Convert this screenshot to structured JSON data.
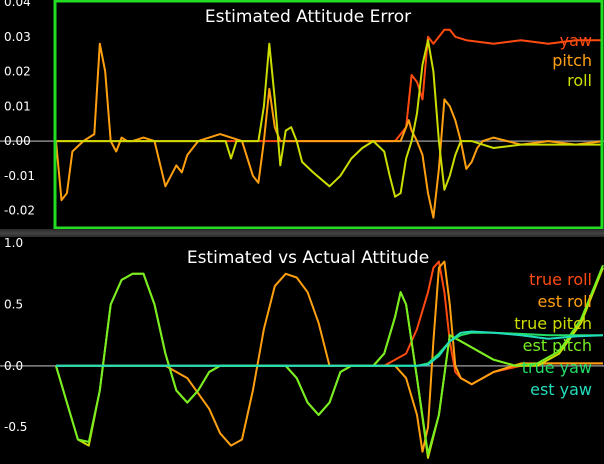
{
  "chart_data": [
    {
      "type": "line",
      "title": "Estimated Attitude Error",
      "xlabel": "",
      "ylabel": "",
      "ylim": [
        -0.025,
        0.04
      ],
      "yticks": [
        "0.04",
        "0.03",
        "0.02",
        "0.01",
        "0.00",
        "-0.01",
        "-0.02"
      ],
      "ytick_values": [
        0.04,
        0.03,
        0.02,
        0.01,
        0.0,
        -0.01,
        -0.02
      ],
      "xlim": [
        0,
        1
      ],
      "grid": false,
      "legend_position": "top-right",
      "frame_color": "#22dd22",
      "series": [
        {
          "name": "yaw",
          "color": "#ff4a10",
          "x": [
            0,
            0.2,
            0.4,
            0.6,
            0.62,
            0.64,
            0.65,
            0.66,
            0.67,
            0.68,
            0.69,
            0.7,
            0.71,
            0.72,
            0.73,
            0.75,
            0.8,
            0.85,
            0.9,
            0.95,
            1.0
          ],
          "y": [
            0.0,
            0.0,
            0.0,
            0.0,
            0.0,
            0.004,
            0.019,
            0.017,
            0.012,
            0.03,
            0.028,
            0.03,
            0.032,
            0.032,
            0.03,
            0.029,
            0.028,
            0.029,
            0.028,
            0.029,
            0.029
          ]
        },
        {
          "name": "pitch",
          "color": "#ffa010",
          "x": [
            0,
            0.01,
            0.02,
            0.03,
            0.05,
            0.07,
            0.08,
            0.09,
            0.1,
            0.11,
            0.12,
            0.13,
            0.14,
            0.16,
            0.18,
            0.2,
            0.21,
            0.22,
            0.23,
            0.24,
            0.26,
            0.28,
            0.3,
            0.32,
            0.34,
            0.36,
            0.37,
            0.38,
            0.39,
            0.4,
            0.41,
            0.42,
            0.44,
            0.46,
            0.48,
            0.5,
            0.52,
            0.54,
            0.56,
            0.58,
            0.6,
            0.62,
            0.63,
            0.64,
            0.645,
            0.65,
            0.66,
            0.67,
            0.68,
            0.69,
            0.7,
            0.71,
            0.72,
            0.73,
            0.74,
            0.75,
            0.76,
            0.77,
            0.78,
            0.8,
            0.85,
            0.9,
            0.95,
            1.0
          ],
          "y": [
            0.0,
            -0.017,
            -0.015,
            -0.003,
            0.0,
            0.002,
            0.028,
            0.02,
            0.0,
            -0.003,
            0.001,
            0.0,
            0.0,
            0.001,
            0.0,
            -0.013,
            -0.01,
            -0.007,
            -0.009,
            -0.004,
            0.0,
            0.001,
            0.002,
            0.001,
            0.0,
            -0.01,
            -0.012,
            0.0,
            0.015,
            0.004,
            0.0,
            0.0,
            0.0,
            0.0,
            0.0,
            0.0,
            0.0,
            0.0,
            0.0,
            0.0,
            0.0,
            0.0,
            0.0,
            0.004,
            0.006,
            0.003,
            0.0,
            -0.004,
            -0.015,
            -0.022,
            -0.008,
            0.012,
            0.01,
            0.006,
            0.0,
            -0.008,
            -0.006,
            -0.002,
            0.0,
            0.001,
            -0.001,
            0.0,
            -0.001,
            0.0
          ]
        },
        {
          "name": "roll",
          "color": "#ccdd00",
          "x": [
            0,
            0.05,
            0.1,
            0.15,
            0.2,
            0.25,
            0.3,
            0.31,
            0.32,
            0.33,
            0.34,
            0.35,
            0.36,
            0.37,
            0.38,
            0.39,
            0.4,
            0.41,
            0.42,
            0.43,
            0.44,
            0.45,
            0.47,
            0.5,
            0.52,
            0.54,
            0.56,
            0.58,
            0.6,
            0.61,
            0.62,
            0.63,
            0.64,
            0.65,
            0.66,
            0.67,
            0.68,
            0.69,
            0.7,
            0.71,
            0.72,
            0.73,
            0.74,
            0.75,
            0.76,
            0.78,
            0.8,
            0.85,
            0.9,
            0.95,
            1.0
          ],
          "y": [
            0.0,
            0.0,
            0.0,
            0.0,
            0.0,
            0.0,
            0.0,
            0.0,
            -0.005,
            0.0,
            0.0,
            0.0,
            0.0,
            0.0,
            0.01,
            0.028,
            0.012,
            -0.007,
            0.003,
            0.004,
            0.0,
            -0.006,
            -0.009,
            -0.013,
            -0.01,
            -0.005,
            -0.002,
            0.0,
            -0.003,
            -0.01,
            -0.016,
            -0.015,
            -0.005,
            0.0,
            0.008,
            0.022,
            0.029,
            0.02,
            0.0,
            -0.014,
            -0.01,
            -0.004,
            0.0,
            0.0,
            0.0,
            -0.001,
            -0.002,
            -0.001,
            -0.001,
            -0.001,
            -0.001
          ]
        }
      ]
    },
    {
      "type": "line",
      "title": "Estimated vs Actual Attitude",
      "xlabel": "",
      "ylabel": "",
      "ylim": [
        -0.8,
        1.05
      ],
      "yticks": [
        "1.0",
        "0.5",
        "0.0",
        "-0.5"
      ],
      "ytick_values": [
        1.0,
        0.5,
        0.0,
        -0.5
      ],
      "xlim": [
        0,
        1
      ],
      "grid": false,
      "legend_position": "top-right",
      "series": [
        {
          "name": "true roll",
          "color": "#ff4a10",
          "x": [
            0,
            0.6,
            0.64,
            0.66,
            0.68,
            0.69,
            0.7,
            0.71,
            0.72,
            0.73,
            0.74,
            0.76,
            0.78,
            0.8,
            0.85,
            0.9,
            0.95,
            1.0
          ],
          "y": [
            0.0,
            0.0,
            0.1,
            0.3,
            0.6,
            0.8,
            0.85,
            0.6,
            0.2,
            -0.05,
            -0.1,
            -0.15,
            -0.1,
            -0.05,
            0.0,
            0.02,
            0.02,
            0.02
          ]
        },
        {
          "name": "est roll",
          "color": "#ffa010",
          "x": [
            0,
            0.2,
            0.24,
            0.28,
            0.3,
            0.32,
            0.34,
            0.36,
            0.38,
            0.4,
            0.42,
            0.44,
            0.46,
            0.48,
            0.5,
            0.54,
            0.58,
            0.6,
            0.62,
            0.64,
            0.66,
            0.67,
            0.68,
            0.69,
            0.7,
            0.71,
            0.72,
            0.73,
            0.74,
            0.76,
            0.78,
            0.8,
            0.85,
            0.9,
            0.95,
            1.0
          ],
          "y": [
            0.0,
            0.0,
            -0.1,
            -0.35,
            -0.55,
            -0.65,
            -0.6,
            -0.2,
            0.3,
            0.65,
            0.75,
            0.72,
            0.6,
            0.35,
            0.0,
            0.0,
            0.0,
            0.0,
            0.0,
            -0.1,
            -0.4,
            -0.7,
            -0.5,
            0.2,
            0.8,
            0.85,
            0.5,
            0.0,
            -0.1,
            -0.15,
            -0.1,
            -0.05,
            0.02,
            0.02,
            0.02,
            0.02
          ]
        },
        {
          "name": "true pitch",
          "color": "#ccdd00",
          "x": [
            0,
            0.02,
            0.04,
            0.06,
            0.08,
            0.1,
            0.12,
            0.14,
            0.16,
            0.18,
            0.2,
            0.22,
            0.24,
            0.26,
            0.28,
            0.3,
            0.32,
            0.34,
            0.36,
            0.38,
            0.4,
            0.42,
            0.44,
            0.46,
            0.48,
            0.5,
            0.52,
            0.54,
            0.56,
            0.58,
            0.6,
            0.62,
            0.63,
            0.64,
            0.66,
            0.68,
            0.7,
            0.72,
            0.74,
            0.76,
            0.78,
            0.8,
            0.84,
            0.88,
            0.92,
            0.96,
            1.0
          ],
          "y": [
            0.0,
            -0.3,
            -0.6,
            -0.65,
            -0.2,
            0.5,
            0.7,
            0.75,
            0.75,
            0.5,
            0.1,
            -0.2,
            -0.3,
            -0.2,
            -0.05,
            0.0,
            0.0,
            0.0,
            0.0,
            0.0,
            0.0,
            0.0,
            -0.1,
            -0.3,
            -0.4,
            -0.3,
            -0.05,
            0.0,
            0.0,
            0.0,
            0.1,
            0.4,
            0.6,
            0.5,
            -0.1,
            -0.75,
            -0.4,
            0.25,
            0.2,
            0.15,
            0.1,
            0.05,
            0.0,
            0.0,
            0.1,
            0.35,
            0.8
          ]
        },
        {
          "name": "est pitch",
          "color": "#77ee22",
          "x": [
            0,
            0.02,
            0.04,
            0.06,
            0.08,
            0.1,
            0.12,
            0.14,
            0.16,
            0.18,
            0.2,
            0.22,
            0.24,
            0.26,
            0.28,
            0.3,
            0.32,
            0.34,
            0.36,
            0.38,
            0.4,
            0.42,
            0.44,
            0.46,
            0.48,
            0.5,
            0.52,
            0.54,
            0.56,
            0.58,
            0.6,
            0.62,
            0.63,
            0.64,
            0.66,
            0.68,
            0.7,
            0.72,
            0.74,
            0.76,
            0.78,
            0.8,
            0.84,
            0.88,
            0.92,
            0.96,
            1.0
          ],
          "y": [
            0.0,
            -0.3,
            -0.6,
            -0.62,
            -0.2,
            0.5,
            0.7,
            0.75,
            0.75,
            0.5,
            0.1,
            -0.2,
            -0.3,
            -0.2,
            -0.05,
            0.0,
            0.0,
            0.0,
            0.0,
            0.0,
            0.0,
            0.0,
            -0.1,
            -0.3,
            -0.4,
            -0.3,
            -0.05,
            0.0,
            0.0,
            0.0,
            0.1,
            0.4,
            0.6,
            0.5,
            -0.1,
            -0.72,
            -0.4,
            0.25,
            0.2,
            0.15,
            0.1,
            0.05,
            0.0,
            0.02,
            0.12,
            0.38,
            0.82
          ]
        },
        {
          "name": "true yaw",
          "color": "#22dd66",
          "x": [
            0,
            0.6,
            0.62,
            0.64,
            0.66,
            0.68,
            0.7,
            0.72,
            0.74,
            0.76,
            0.8,
            0.85,
            0.9,
            0.95,
            1.0
          ],
          "y": [
            0.0,
            0.0,
            0.0,
            0.0,
            0.0,
            0.02,
            0.1,
            0.2,
            0.25,
            0.27,
            0.27,
            0.26,
            0.25,
            0.25,
            0.25
          ]
        },
        {
          "name": "est yaw",
          "color": "#22ddbb",
          "x": [
            0,
            0.6,
            0.62,
            0.64,
            0.66,
            0.68,
            0.7,
            0.72,
            0.74,
            0.76,
            0.8,
            0.85,
            0.9,
            0.95,
            1.0
          ],
          "y": [
            0.0,
            0.0,
            0.0,
            0.0,
            0.0,
            0.01,
            0.08,
            0.2,
            0.27,
            0.28,
            0.27,
            0.25,
            0.22,
            0.24,
            0.25
          ]
        }
      ]
    }
  ]
}
